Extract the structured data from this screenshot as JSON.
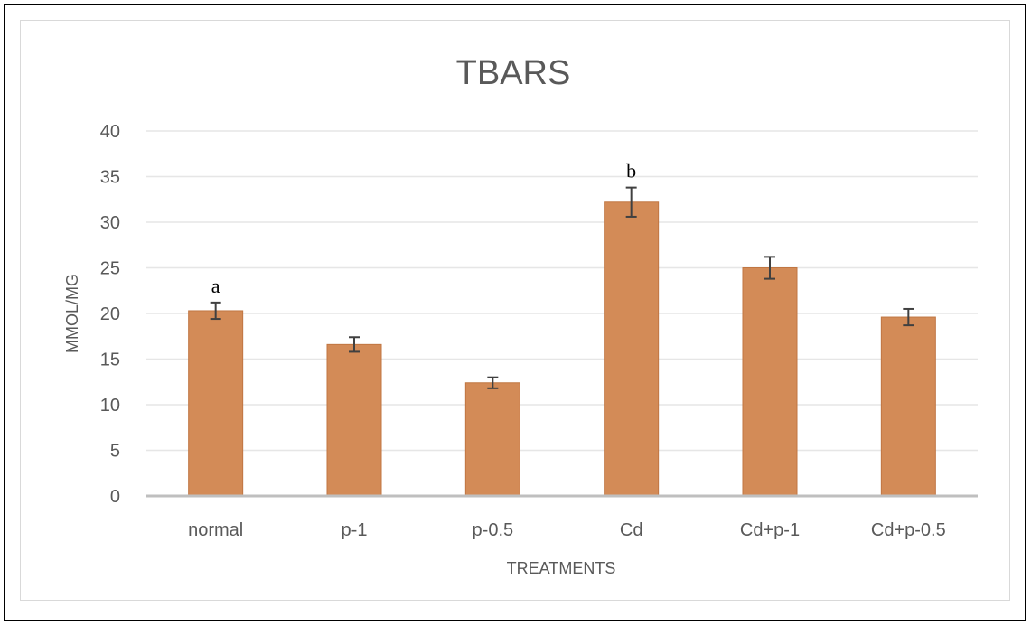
{
  "chart_data": {
    "type": "bar",
    "title": "TBARS",
    "xlabel": "TREATMENTS",
    "ylabel": "MMOL/MG",
    "categories": [
      "normal",
      "p-1",
      "p-0.5",
      "Cd",
      "Cd+p-1",
      "Cd+p-0.5"
    ],
    "values": [
      20.3,
      16.6,
      12.4,
      32.2,
      25.0,
      19.6
    ],
    "error": [
      0.9,
      0.8,
      0.6,
      1.6,
      1.2,
      0.9
    ],
    "annotations": [
      {
        "category": "normal",
        "text": "a"
      },
      {
        "category": "Cd",
        "text": "b"
      }
    ],
    "ylim": [
      0,
      40
    ],
    "yticks": [
      0,
      5,
      10,
      15,
      20,
      25,
      30,
      35,
      40
    ],
    "grid": true,
    "colors": {
      "bar": "#d38b57",
      "bar_edge": "#c07642",
      "grid": "#e6e6e6",
      "axis": "#bfbfbf",
      "error": "#404040"
    }
  }
}
